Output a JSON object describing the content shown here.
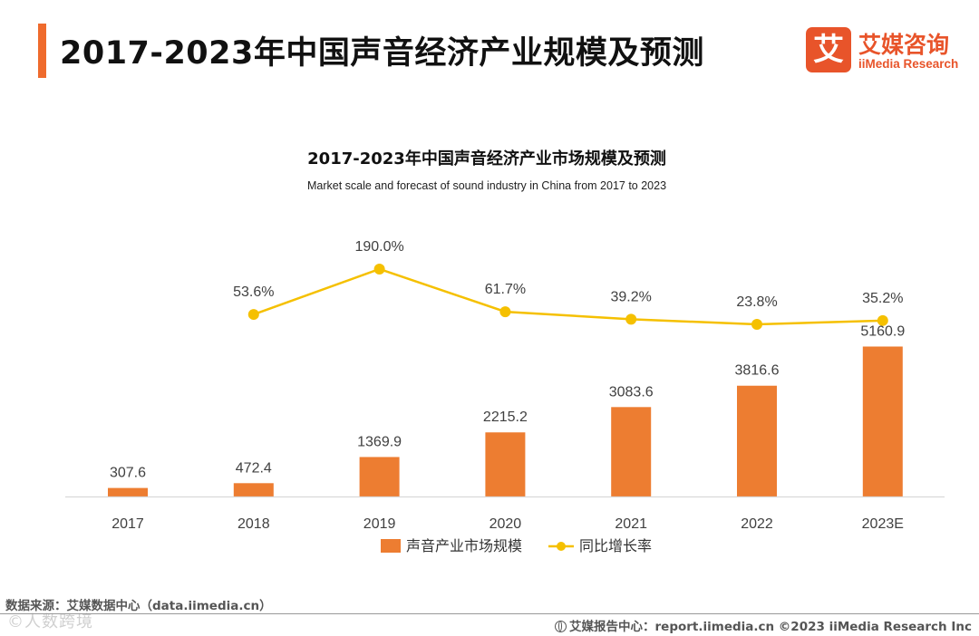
{
  "header": {
    "title": "2017-2023年中国声音经济产业规模及预测",
    "logo_mark": "艾",
    "logo_cn": "艾媒咨询",
    "logo_en": "iiMedia Research"
  },
  "colors": {
    "bar": "#ed7d31",
    "line": "#f5c000",
    "accent": "#ef6b2d",
    "axis": "#d9d9d9",
    "label": "#404040"
  },
  "chart_data": {
    "type": "bar+line",
    "title": "2017-2023年中国声音经济产业市场规模及预测",
    "subtitle": "Market scale and forecast of sound industry in China from 2017 to 2023",
    "categories": [
      "2017",
      "2018",
      "2019",
      "2020",
      "2021",
      "2022",
      "2023E"
    ],
    "series": [
      {
        "name": "声音产业市场规模",
        "type": "bar",
        "values": [
          307.6,
          472.4,
          1369.9,
          2215.2,
          3083.6,
          3816.6,
          5160.9
        ],
        "labels": [
          "307.6",
          "472.4",
          "1369.9",
          "2215.2",
          "3083.6",
          "3816.6",
          "5160.9"
        ]
      },
      {
        "name": "同比增长率",
        "type": "line",
        "values": [
          null,
          53.6,
          190.0,
          61.7,
          39.2,
          23.8,
          35.2
        ],
        "labels": [
          "",
          "53.6%",
          "190.0%",
          "61.7%",
          "39.2%",
          "23.8%",
          "35.2%"
        ]
      }
    ],
    "legend": [
      "声音产业市场规模",
      "同比增长率"
    ],
    "legend_position": "bottom"
  },
  "footer": {
    "source": "数据来源：艾媒数据中心（data.iimedia.cn）",
    "watermark": "©人数跨境",
    "credit": "艾媒报告中心：report.iimedia.cn   ©2023  iiMedia Research  Inc"
  }
}
